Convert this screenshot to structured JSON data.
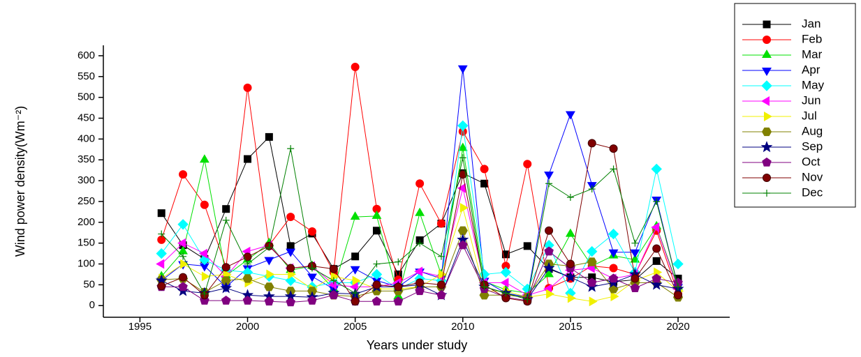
{
  "chart_data": {
    "type": "line",
    "x_label": "Years under study",
    "y_label": "Wind power density(Wm⁻²)",
    "xlim": [
      1993.3,
      2022.4
    ],
    "xticks": [
      1995,
      2000,
      2005,
      2010,
      2015,
      2020
    ],
    "ylim": [
      -28,
      625
    ],
    "yticks": [
      0,
      50,
      100,
      150,
      200,
      250,
      300,
      350,
      400,
      450,
      500,
      550,
      600
    ],
    "x": [
      1996,
      1997,
      1998,
      1999,
      2000,
      2001,
      2002,
      2003,
      2004,
      2005,
      2006,
      2007,
      2008,
      2009,
      2010,
      2011,
      2012,
      2013,
      2014,
      2015,
      2016,
      2017,
      2018,
      2019,
      2020
    ],
    "legend": "outside-right",
    "series": [
      {
        "name": "Jan",
        "color": "#000000",
        "marker": "square",
        "values": [
          222,
          145,
          112,
          232,
          352,
          405,
          143,
          173,
          88,
          118,
          180,
          75,
          157,
          197,
          318,
          293,
          123,
          143,
          88,
          68,
          68,
          57,
          62,
          107,
          65
        ]
      },
      {
        "name": "Feb",
        "color": "#ff0000",
        "marker": "circle",
        "values": [
          158,
          315,
          242,
          92,
          523,
          145,
          213,
          178,
          80,
          573,
          232,
          62,
          293,
          197,
          418,
          328,
          95,
          340,
          42,
          65,
          95,
          90,
          75,
          180,
          28
        ]
      },
      {
        "name": "Mar",
        "color": "#00e000",
        "marker": "triangle-up",
        "values": [
          70,
          130,
          350,
          72,
          110,
          150,
          85,
          95,
          40,
          213,
          215,
          22,
          222,
          75,
          378,
          58,
          38,
          30,
          75,
          172,
          95,
          120,
          110,
          190,
          45
        ]
      },
      {
        "name": "Apr",
        "color": "#0000ff",
        "marker": "triangle-down",
        "values": [
          60,
          100,
          95,
          45,
          90,
          110,
          130,
          70,
          40,
          88,
          60,
          45,
          82,
          65,
          570,
          60,
          30,
          20,
          315,
          460,
          290,
          128,
          128,
          255,
          45
        ]
      },
      {
        "name": "May",
        "color": "#00ffff",
        "marker": "diamond",
        "values": [
          125,
          195,
          110,
          85,
          80,
          70,
          60,
          45,
          55,
          55,
          75,
          40,
          65,
          60,
          432,
          75,
          80,
          40,
          145,
          30,
          130,
          172,
          80,
          328,
          100
        ]
      },
      {
        "name": "Jun",
        "color": "#ff00ff",
        "marker": "triangle-left",
        "values": [
          100,
          150,
          125,
          70,
          130,
          145,
          90,
          95,
          50,
          45,
          45,
          55,
          82,
          70,
          282,
          55,
          55,
          25,
          40,
          85,
          90,
          65,
          75,
          188,
          40
        ]
      },
      {
        "name": "Jul",
        "color": "#f0f000",
        "marker": "triangle-right",
        "values": [
          65,
          100,
          70,
          75,
          55,
          75,
          75,
          40,
          70,
          60,
          40,
          40,
          45,
          75,
          235,
          35,
          35,
          20,
          28,
          18,
          10,
          22,
          60,
          80,
          35
        ]
      },
      {
        "name": "Aug",
        "color": "#808000",
        "marker": "hexagon",
        "values": [
          62,
          65,
          32,
          60,
          65,
          45,
          35,
          35,
          25,
          22,
          35,
          35,
          45,
          45,
          180,
          25,
          25,
          20,
          100,
          95,
          105,
          40,
          55,
          55,
          20
        ]
      },
      {
        "name": "Sep",
        "color": "#000080",
        "marker": "star",
        "values": [
          60,
          35,
          30,
          42,
          25,
          22,
          22,
          20,
          30,
          28,
          45,
          45,
          50,
          25,
          158,
          45,
          30,
          15,
          90,
          68,
          45,
          55,
          75,
          50,
          40
        ]
      },
      {
        "name": "Oct",
        "color": "#800080",
        "marker": "pentagon",
        "values": [
          45,
          45,
          12,
          12,
          12,
          10,
          8,
          12,
          25,
          10,
          10,
          10,
          35,
          25,
          145,
          40,
          20,
          12,
          130,
          90,
          55,
          65,
          42,
          65,
          55
        ]
      },
      {
        "name": "Nov",
        "color": "#800000",
        "marker": "ball",
        "values": [
          47,
          68,
          25,
          92,
          117,
          143,
          90,
          95,
          88,
          10,
          50,
          45,
          55,
          50,
          315,
          50,
          18,
          10,
          180,
          100,
          390,
          377,
          65,
          137,
          25
        ]
      },
      {
        "name": "Dec",
        "color": "#008000",
        "marker": "plus",
        "values": [
          172,
          118,
          28,
          205,
          100,
          140,
          377,
          90,
          60,
          30,
          100,
          105,
          150,
          118,
          355,
          45,
          30,
          15,
          293,
          260,
          280,
          328,
          150,
          250,
          45
        ]
      }
    ]
  }
}
